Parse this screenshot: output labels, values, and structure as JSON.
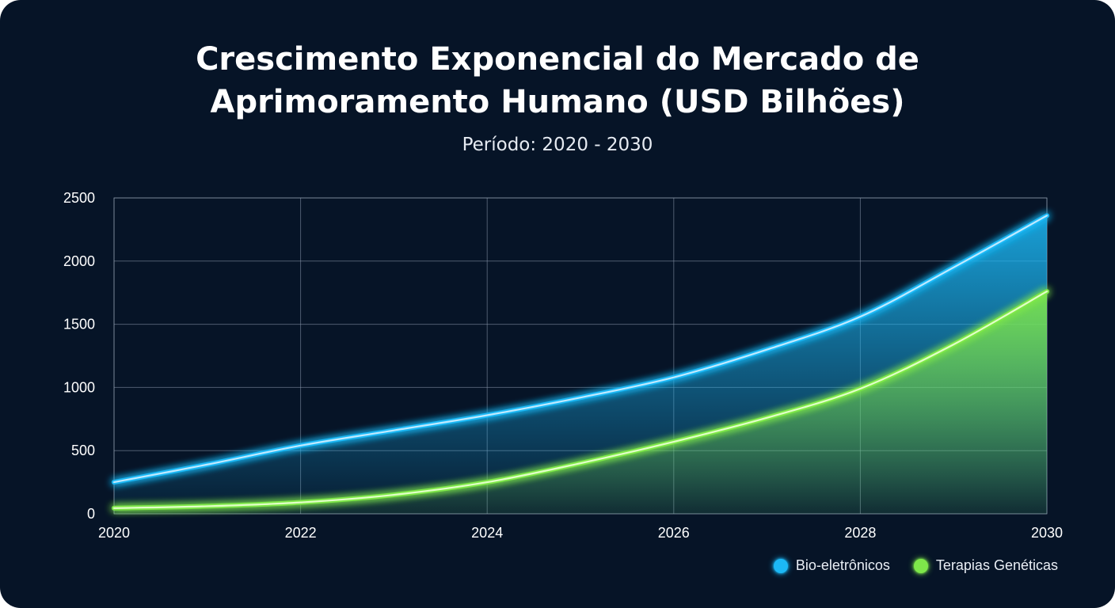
{
  "chart_data": {
    "type": "area",
    "title_lines": [
      "Crescimento Exponencial do Mercado de",
      "Aprimoramento Humano (USD Bilhões)"
    ],
    "subtitle": "Período: 2020 - 2030",
    "xlabel": "",
    "ylabel": "",
    "x": [
      2020,
      2021,
      2022,
      2023,
      2024,
      2025,
      2026,
      2027,
      2028,
      2029,
      2030
    ],
    "x_ticks": [
      "2020",
      "2022",
      "2024",
      "2026",
      "2028",
      "2030"
    ],
    "y_ticks": [
      "0",
      "500",
      "1000",
      "1500",
      "2000",
      "2500"
    ],
    "xlim": [
      2020,
      2030
    ],
    "ylim": [
      0,
      2500
    ],
    "grid": true,
    "legend_position": "bottom-right",
    "series": [
      {
        "name": "Bio-eletrônicos",
        "color": "#1cb8f5",
        "values": [
          250,
          390,
          540,
          660,
          780,
          920,
          1080,
          1300,
          1560,
          1950,
          2360
        ]
      },
      {
        "name": "Terapias Genéticas",
        "color": "#7ee74a",
        "values": [
          45,
          60,
          90,
          150,
          250,
          400,
          570,
          760,
          990,
          1340,
          1760
        ]
      }
    ]
  }
}
